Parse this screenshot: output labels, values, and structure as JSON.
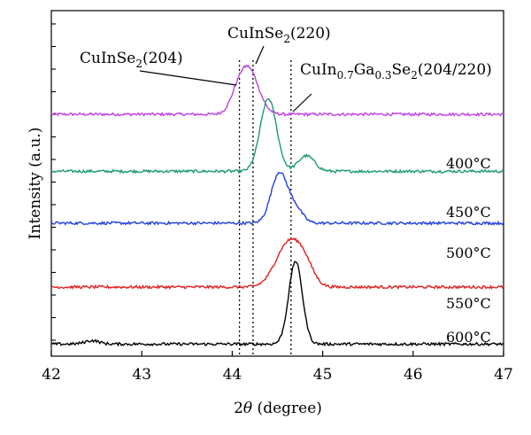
{
  "chart_data": {
    "type": "line",
    "xlabel_prefix": "2",
    "xlabel_symbol": "θ",
    "xlabel_suffix": " (degree)",
    "ylabel": "Intensity (a.u.)",
    "xlim": [
      42,
      47
    ],
    "xticks": [
      "42",
      "43",
      "44",
      "45",
      "46",
      "47"
    ],
    "grid": false,
    "legend": "none",
    "reference_lines": [
      44.08,
      44.23,
      44.65
    ],
    "annotations": [
      {
        "main": "CuInSe",
        "sub": "2",
        "tail": "(204)"
      },
      {
        "main": "CuInSe",
        "sub": "2",
        "tail": "(220)"
      },
      {
        "parts": [
          {
            "t": "CuIn"
          },
          {
            "t": "0.7",
            "sub": true
          },
          {
            "t": "Ga"
          },
          {
            "t": "0.3",
            "sub": true
          },
          {
            "t": "Se"
          },
          {
            "t": "2",
            "sub": true
          },
          {
            "t": "(204/220)"
          }
        ]
      }
    ],
    "series": [
      {
        "name": "",
        "color": "#c040e0",
        "baseline": 0.7,
        "peak_x": 44.18,
        "peak_h": 0.13,
        "width": 0.11,
        "extras": [
          {
            "x": 44.05,
            "h": 0.03,
            "w": 0.08
          }
        ]
      },
      {
        "name": "400°C",
        "color": "#1a9a72",
        "baseline": 0.535,
        "peak_x": 44.4,
        "peak_h": 0.21,
        "width": 0.09,
        "extras": [
          {
            "x": 44.82,
            "h": 0.045,
            "w": 0.09
          }
        ]
      },
      {
        "name": "450°C",
        "color": "#2040e0",
        "baseline": 0.385,
        "peak_x": 44.52,
        "peak_h": 0.145,
        "width": 0.09,
        "extras": [
          {
            "x": 44.7,
            "h": 0.04,
            "w": 0.08
          }
        ]
      },
      {
        "name": "500°C",
        "color": "#e02020",
        "baseline": 0.2,
        "peak_x": 44.62,
        "peak_h": 0.125,
        "width": 0.14,
        "extras": [
          {
            "x": 44.8,
            "h": 0.05,
            "w": 0.1
          }
        ]
      },
      {
        "name": "550°C",
        "color": "#000000",
        "baseline": 0.035,
        "peak_x": 44.7,
        "peak_h": 0.24,
        "width": 0.075,
        "extras": [
          {
            "x": 42.45,
            "h": 0.01,
            "w": 0.08
          }
        ]
      }
    ]
  },
  "temperature_labels": [
    "400°C",
    "450°C",
    "500°C",
    "550°C",
    "600°C"
  ]
}
